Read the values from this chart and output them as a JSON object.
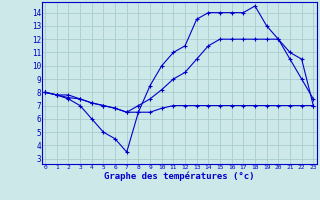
{
  "title": "Graphe des températures (°c)",
  "bg_color": "#cce8e8",
  "grid_color": "#aacccc",
  "line_color": "#0000cc",
  "x_ticks": [
    0,
    1,
    2,
    3,
    4,
    5,
    6,
    7,
    8,
    9,
    10,
    11,
    12,
    13,
    14,
    15,
    16,
    17,
    18,
    19,
    20,
    21,
    22,
    23
  ],
  "y_ticks": [
    3,
    4,
    5,
    6,
    7,
    8,
    9,
    10,
    11,
    12,
    13,
    14
  ],
  "xlim": [
    -0.3,
    23.3
  ],
  "ylim": [
    2.6,
    14.8
  ],
  "series": {
    "tmax": {
      "x": [
        0,
        1,
        2,
        3,
        4,
        5,
        6,
        7,
        8,
        9,
        10,
        11,
        12,
        13,
        14,
        15,
        16,
        17,
        18,
        19,
        20,
        21,
        22,
        23
      ],
      "y": [
        8.0,
        7.8,
        7.5,
        7.0,
        6.0,
        5.0,
        4.5,
        3.5,
        6.5,
        8.5,
        10.0,
        11.0,
        11.5,
        13.5,
        14.0,
        14.0,
        14.0,
        14.0,
        14.5,
        13.0,
        12.0,
        10.5,
        9.0,
        7.5
      ]
    },
    "tmean": {
      "x": [
        0,
        1,
        2,
        3,
        4,
        5,
        6,
        7,
        8,
        9,
        10,
        11,
        12,
        13,
        14,
        15,
        16,
        17,
        18,
        19,
        20,
        21,
        22,
        23
      ],
      "y": [
        8.0,
        7.8,
        7.8,
        7.5,
        7.2,
        7.0,
        6.8,
        6.5,
        7.0,
        7.5,
        8.2,
        9.0,
        9.5,
        10.5,
        11.5,
        12.0,
        12.0,
        12.0,
        12.0,
        12.0,
        12.0,
        11.0,
        10.5,
        7.0
      ]
    },
    "tmin": {
      "x": [
        0,
        1,
        2,
        3,
        4,
        5,
        6,
        7,
        8,
        9,
        10,
        11,
        12,
        13,
        14,
        15,
        16,
        17,
        18,
        19,
        20,
        21,
        22,
        23
      ],
      "y": [
        8.0,
        7.8,
        7.6,
        7.5,
        7.2,
        7.0,
        6.8,
        6.5,
        6.5,
        6.5,
        6.8,
        7.0,
        7.0,
        7.0,
        7.0,
        7.0,
        7.0,
        7.0,
        7.0,
        7.0,
        7.0,
        7.0,
        7.0,
        7.0
      ]
    }
  }
}
